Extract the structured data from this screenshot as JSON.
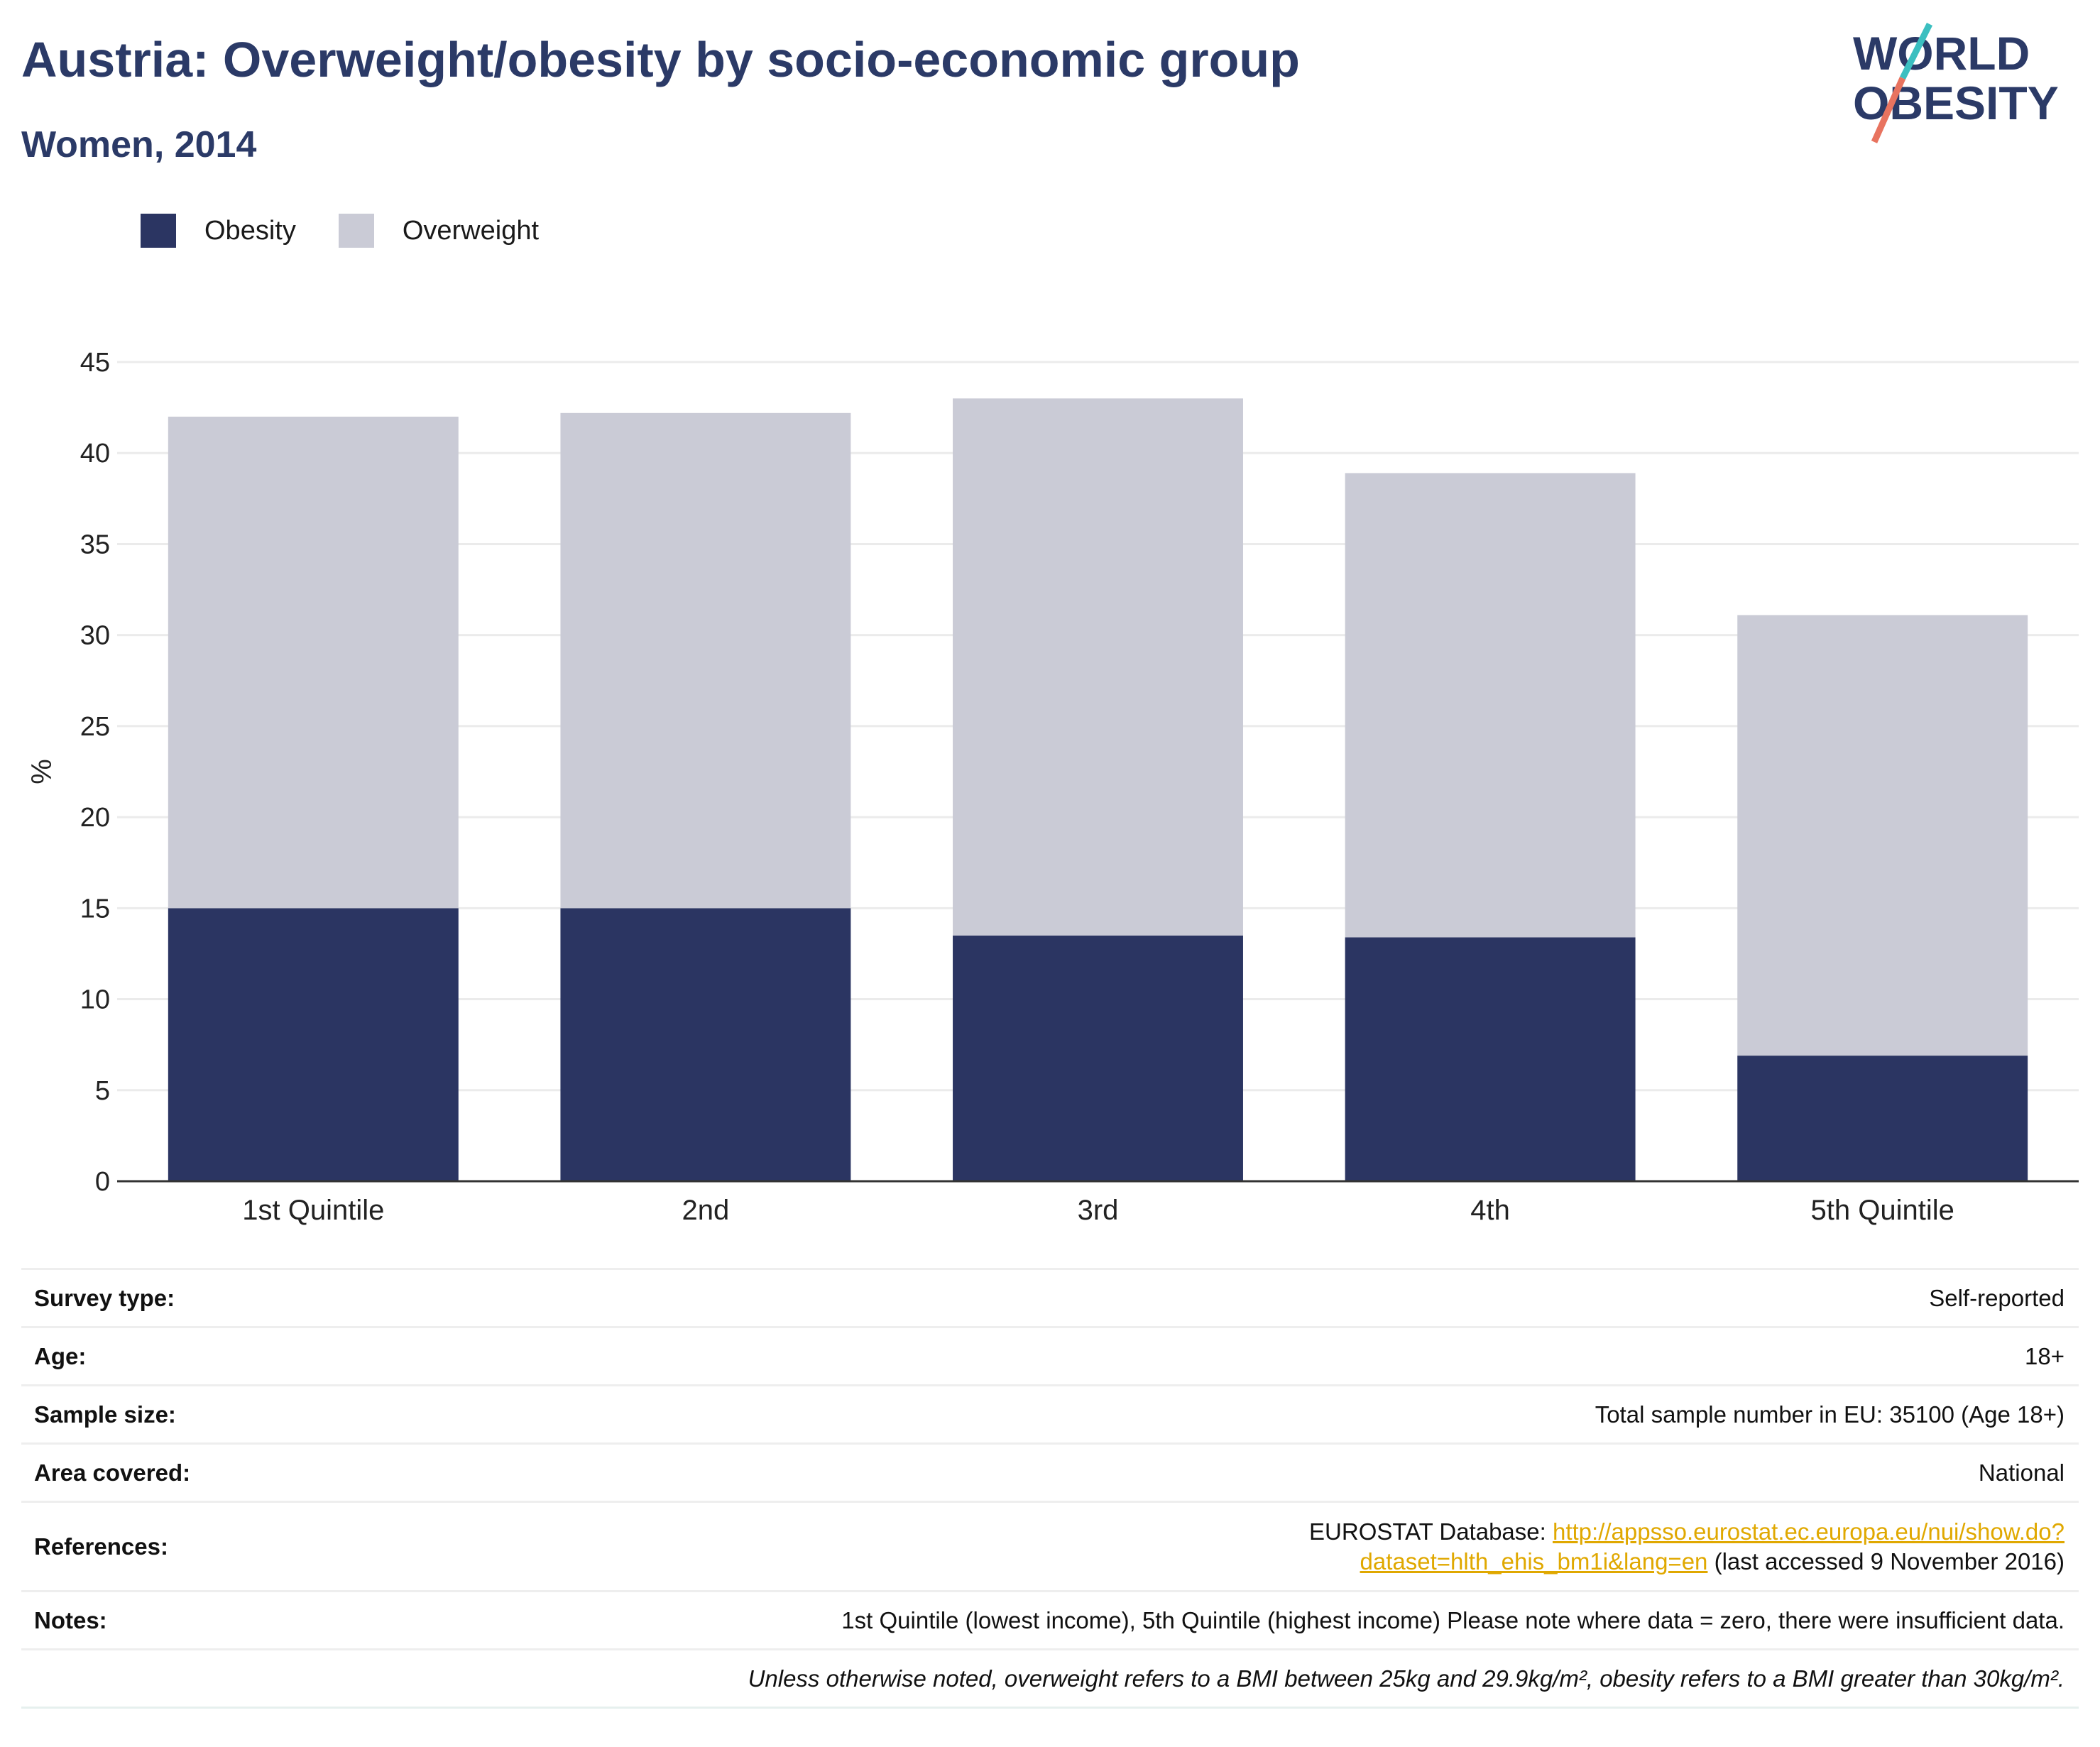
{
  "header": {
    "title": "Austria: Overweight/obesity by socio-economic group",
    "subtitle": "Women, 2014",
    "logo_line1": "WORLD",
    "logo_line2": "OBESITY"
  },
  "legend": {
    "obesity_label": "Obesity",
    "overweight_label": "Overweight"
  },
  "colors": {
    "obesity": "#2b3562",
    "overweight": "#cacbd6",
    "title": "#2b3a67",
    "link": "#e0a800",
    "logo_teal": "#3bbfc0",
    "logo_coral": "#e8735f"
  },
  "chart_data": {
    "type": "bar",
    "stacked": true,
    "categories": [
      "1st Quintile",
      "2nd",
      "3rd",
      "4th",
      "5th Quintile"
    ],
    "series": [
      {
        "name": "Obesity",
        "values": [
          15.0,
          15.0,
          13.5,
          13.4,
          6.9
        ]
      },
      {
        "name": "Overweight",
        "values": [
          27.0,
          27.2,
          29.5,
          25.5,
          24.2
        ]
      }
    ],
    "ylabel": "%",
    "ylim": [
      0,
      45
    ],
    "yticks": [
      0,
      5,
      10,
      15,
      20,
      25,
      30,
      35,
      40,
      45
    ],
    "grid": true,
    "legend_position": "top-left"
  },
  "info": {
    "survey_type_label": "Survey type:",
    "survey_type_value": "Self-reported",
    "age_label": "Age:",
    "age_value": "18+",
    "sample_size_label": "Sample size:",
    "sample_size_value": "Total sample number in EU: 35100 (Age 18+)",
    "area_label": "Area covered:",
    "area_value": "National",
    "references_label": "References:",
    "references_prefix": "EUROSTAT Database: ",
    "references_link": "http://appsso.eurostat.ec.europa.eu/nui/show.do?dataset=hlth_ehis_bm1i&lang=en",
    "references_suffix": " (last accessed 9 November 2016)",
    "notes_label": "Notes:",
    "notes_value": "1st Quintile (lowest income), 5th Quintile (highest income) Please note where data = zero, there were insufficient data.",
    "definition_note": "Unless otherwise noted, overweight refers to a BMI between 25kg and 29.9kg/m², obesity refers to a BMI greater than 30kg/m²."
  }
}
